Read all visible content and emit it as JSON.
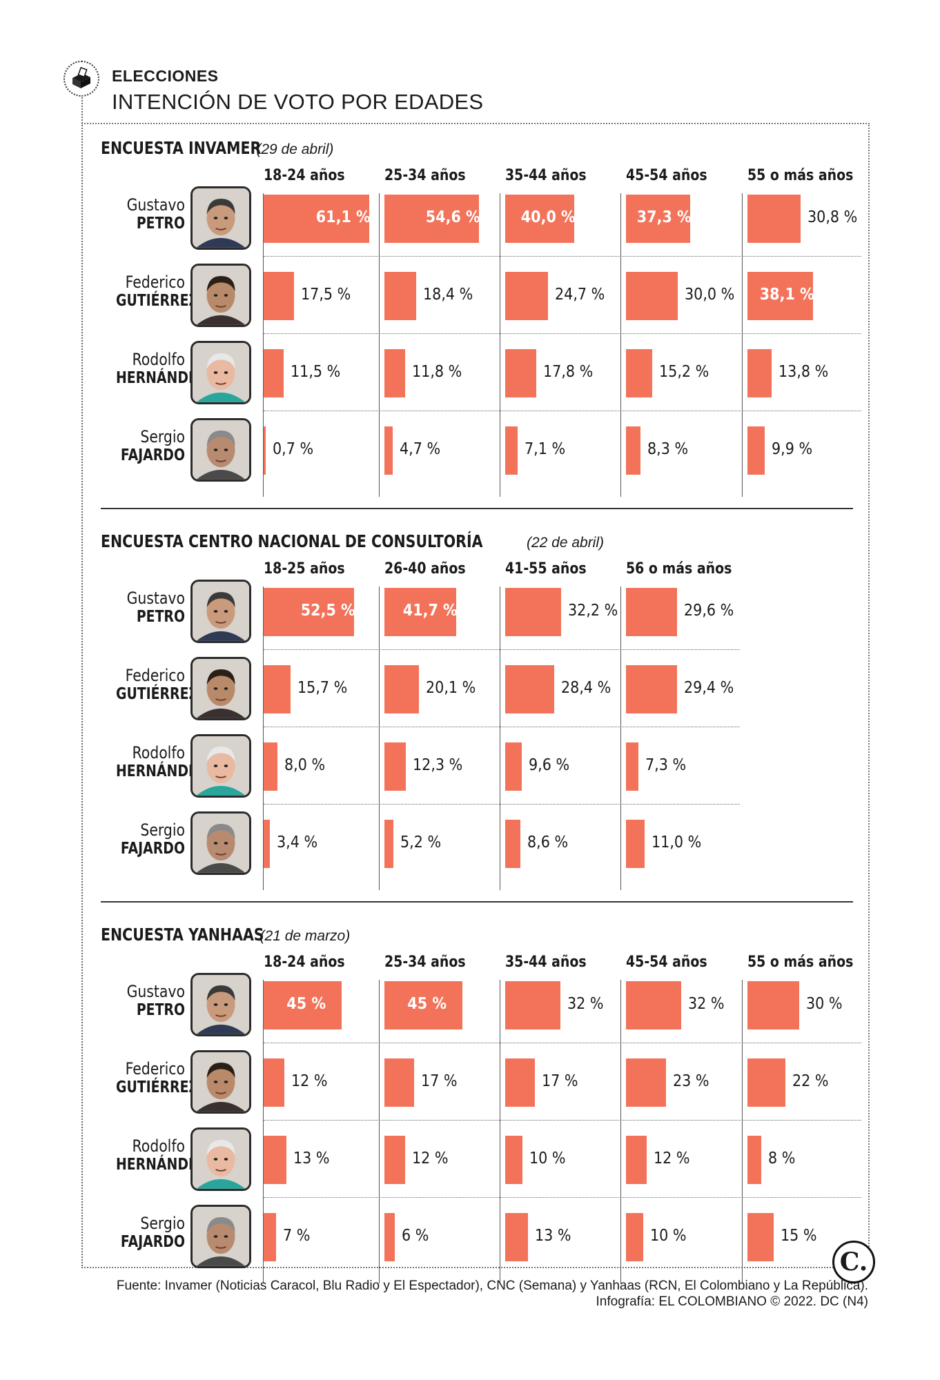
{
  "header": {
    "eyebrow": "ELECCIONES",
    "title": "INTENCIÓN DE VOTO POR EDADES",
    "icon": "ballot-box-icon"
  },
  "candidates": [
    {
      "first": "Gustavo",
      "last": "PETRO"
    },
    {
      "first": "Federico",
      "last": "GUTIÉRREZ"
    },
    {
      "first": "Rodolfo",
      "last": "HERNÁNDEZ"
    },
    {
      "first": "Sergio",
      "last": "FAJARDO"
    }
  ],
  "colors": {
    "bar": "#f2735a",
    "text": "#1a1a1a"
  },
  "chart_data": [
    {
      "type": "bar",
      "title": "ENCUESTA INVAMER",
      "date": "(29 de abril)",
      "categories": [
        "18-24 años",
        "25-34 años",
        "35-44 años",
        "45-54 años",
        "55 o más años"
      ],
      "series": [
        {
          "name": "Gustavo PETRO",
          "values": [
            61.1,
            54.6,
            40.0,
            37.3,
            30.8
          ],
          "labels": [
            "61,1 %",
            "54,6 %",
            "40,0 %",
            "37,3 %",
            "30,8 %"
          ]
        },
        {
          "name": "Federico GUTIÉRREZ",
          "values": [
            17.5,
            18.4,
            24.7,
            30.0,
            38.1
          ],
          "labels": [
            "17,5 %",
            "18,4 %",
            "24,7 %",
            "30,0 %",
            "38,1 %"
          ]
        },
        {
          "name": "Rodolfo HERNÁNDEZ",
          "values": [
            11.5,
            11.8,
            17.8,
            15.2,
            13.8
          ],
          "labels": [
            "11,5 %",
            "11,8 %",
            "17,8 %",
            "15,2 %",
            "13,8 %"
          ]
        },
        {
          "name": "Sergio FAJARDO",
          "values": [
            0.7,
            4.7,
            7.1,
            8.3,
            9.9
          ],
          "labels": [
            "0,7 %",
            "4,7 %",
            "7,1 %",
            "8,3 %",
            "9,9 %"
          ]
        }
      ],
      "unit": "%"
    },
    {
      "type": "bar",
      "title": "ENCUESTA CENTRO NACIONAL DE CONSULTORÍA",
      "date": "(22 de abril)",
      "categories": [
        "18-25 años",
        "26-40 años",
        "41-55 años",
        "56 o más años"
      ],
      "series": [
        {
          "name": "Gustavo PETRO",
          "values": [
            52.5,
            41.7,
            32.2,
            29.6
          ],
          "labels": [
            "52,5 %",
            "41,7 %",
            "32,2 %",
            "29,6 %"
          ]
        },
        {
          "name": "Federico GUTIÉRREZ",
          "values": [
            15.7,
            20.1,
            28.4,
            29.4
          ],
          "labels": [
            "15,7 %",
            "20,1 %",
            "28,4 %",
            "29,4 %"
          ]
        },
        {
          "name": "Rodolfo HERNÁNDEZ",
          "values": [
            8.0,
            12.3,
            9.6,
            7.3
          ],
          "labels": [
            "8,0 %",
            "12,3 %",
            "9,6 %",
            "7,3 %"
          ]
        },
        {
          "name": "Sergio FAJARDO",
          "values": [
            3.4,
            5.2,
            8.6,
            11.0
          ],
          "labels": [
            "3,4 %",
            "5,2 %",
            "8,6 %",
            "11,0 %"
          ]
        }
      ],
      "unit": "%"
    },
    {
      "type": "bar",
      "title": "ENCUESTA YANHAAS",
      "date": "(21 de marzo)",
      "categories": [
        "18-24 años",
        "25-34 años",
        "35-44 años",
        "45-54 años",
        "55 o más años"
      ],
      "series": [
        {
          "name": "Gustavo PETRO",
          "values": [
            45,
            45,
            32,
            32,
            30
          ],
          "labels": [
            "45 %",
            "45 %",
            "32 %",
            "32 %",
            "30 %"
          ]
        },
        {
          "name": "Federico GUTIÉRREZ",
          "values": [
            12,
            17,
            17,
            23,
            22
          ],
          "labels": [
            "12 %",
            "17 %",
            "17 %",
            "23 %",
            "22 %"
          ]
        },
        {
          "name": "Rodolfo HERNÁNDEZ",
          "values": [
            13,
            12,
            10,
            12,
            8
          ],
          "labels": [
            "13 %",
            "12 %",
            "10 %",
            "12 %",
            "8 %"
          ]
        },
        {
          "name": "Sergio FAJARDO",
          "values": [
            7,
            6,
            13,
            10,
            15
          ],
          "labels": [
            "7 %",
            "6 %",
            "13 %",
            "10 %",
            "15 %"
          ]
        }
      ],
      "unit": "%"
    }
  ],
  "footer": {
    "source": "Fuente: Invamer (Noticias Caracol, Blu Radio y El Espectador), CNC (Semana) y Yanhaas (RCN, El Colombiano y La República).",
    "credit": "Infografía: EL COLOMBIANO © 2022. DC (N4)",
    "logo": "C."
  }
}
